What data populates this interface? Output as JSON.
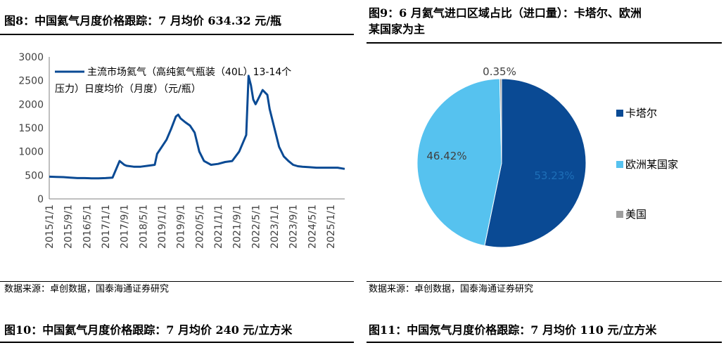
{
  "figure8": {
    "title": "图8：中国氦气月度价格跟踪：7 月均价 634.32 元/瓶",
    "source": "数据来源：卓创数据，国泰海通证券研究"
  },
  "figure9": {
    "title_line1": "图9：6 月氦气进口区域占比（进口量）：卡塔尔、欧洲",
    "title_line2": "某国家为主",
    "source": "数据来源：卓创数据，国泰海通证券研究"
  },
  "figure10": {
    "title": "图10：中国氦气月度价格跟踪：7 月均价 240 元/立方米"
  },
  "figure11": {
    "title": "图11：中国氖气月度价格跟踪：7 月均价 110 元/立方米"
  },
  "chart_data": [
    {
      "type": "line",
      "legend_line1": "主流市场氦气（高纯氦气瓶装（40L）13-14个",
      "legend_line2": "压力）日度均价（月度）（元/瓶）",
      "series": [
        {
          "name": "主流市场氦气（高纯氦气瓶装（40L）13-14个压力）日度均价（月度）（元/瓶）",
          "color": "#0a4a94",
          "x": [
            "2015/1/1",
            "2015/4/1",
            "2015/7/1",
            "2015/10/1",
            "2016/1/1",
            "2016/4/1",
            "2016/7/1",
            "2016/10/1",
            "2017/1/1",
            "2017/4/1",
            "2017/7/1",
            "2017/9/1",
            "2017/10/1",
            "2018/1/1",
            "2018/4/1",
            "2018/7/1",
            "2018/10/1",
            "2018/11/1",
            "2019/1/1",
            "2019/3/1",
            "2019/5/1",
            "2019/7/1",
            "2019/8/1",
            "2019/9/1",
            "2019/11/1",
            "2020/1/1",
            "2020/3/1",
            "2020/5/1",
            "2020/7/1",
            "2020/10/1",
            "2021/1/1",
            "2021/4/1",
            "2021/7/1",
            "2021/10/1",
            "2022/1/1",
            "2022/2/1",
            "2022/3/1",
            "2022/4/1",
            "2022/5/1",
            "2022/6/1",
            "2022/8/1",
            "2022/10/1",
            "2022/11/1",
            "2023/1/1",
            "2023/3/1",
            "2023/5/1",
            "2023/7/1",
            "2023/9/1",
            "2023/11/1",
            "2024/1/1",
            "2024/4/1",
            "2024/7/1",
            "2024/10/1",
            "2025/1/1",
            "2025/4/1",
            "2025/7/1"
          ],
          "y": [
            470,
            465,
            460,
            450,
            440,
            440,
            435,
            435,
            440,
            450,
            800,
            720,
            700,
            680,
            680,
            700,
            720,
            950,
            1100,
            1250,
            1480,
            1740,
            1780,
            1700,
            1620,
            1550,
            1400,
            1000,
            800,
            720,
            740,
            780,
            800,
            1000,
            1350,
            2600,
            2400,
            2100,
            2000,
            2100,
            2300,
            2200,
            1900,
            1500,
            1100,
            900,
            800,
            720,
            690,
            680,
            670,
            660,
            660,
            660,
            660,
            634.32
          ]
        }
      ],
      "ylim": [
        0,
        3000
      ],
      "yticks": [
        0,
        500,
        1000,
        1500,
        2000,
        2500,
        3000
      ],
      "xtick_labels": [
        "2015/1/1",
        "2015/9/1",
        "2016/5/1",
        "2017/1/1",
        "2017/9/1",
        "2018/5/1",
        "2019/1/1",
        "2019/9/1",
        "2020/5/1",
        "2021/1/1",
        "2021/9/1",
        "2022/5/1",
        "2023/1/1",
        "2023/9/1",
        "2024/5/1",
        "2025/1/1"
      ],
      "grid": false,
      "legend_position": "top-left"
    },
    {
      "type": "pie",
      "labels": [
        "卡塔尔",
        "欧洲某国家",
        "美国"
      ],
      "values": [
        53.23,
        46.42,
        0.35
      ],
      "value_labels": [
        "53.23%",
        "46.42%",
        "0.35%"
      ],
      "colors": [
        "#0a4a94",
        "#56c2ef",
        "#9e9e9e"
      ],
      "legend_position": "right"
    }
  ]
}
